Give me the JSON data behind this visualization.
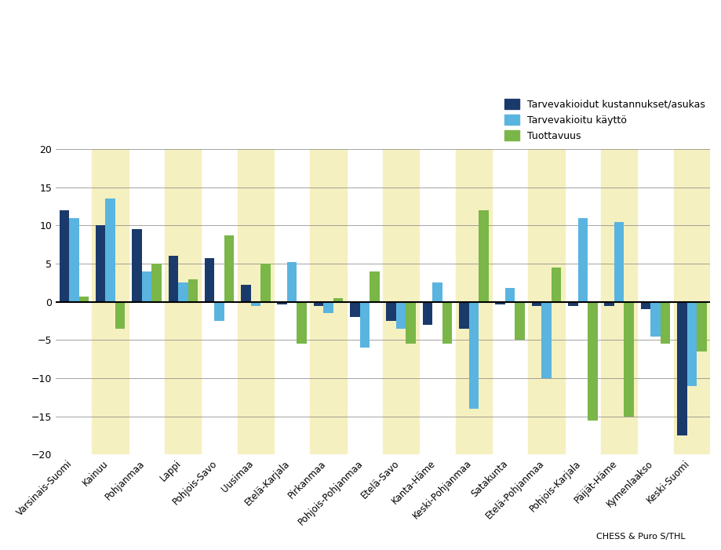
{
  "categories": [
    "Varsinais-Suomi",
    "Kainuu",
    "Pohjanmaa",
    "Lappi",
    "Pohjois-Savo",
    "Uusimaa",
    "Etelä-Karjala",
    "Pirkanmaa",
    "Pohjois-Pohjanmaa",
    "Etelä-Savo",
    "Kanta-Häme",
    "Keski-Pohjanmaa",
    "Satakunta",
    "Etelä-Pohjanmaa",
    "Pohjois-Karjala",
    "Päijät-Häme",
    "Kymenlaakso",
    "Keski-Suomi"
  ],
  "series": {
    "kustannukset": [
      12,
      10,
      9.5,
      6,
      5.7,
      2.2,
      -0.3,
      -0.5,
      -2,
      -2.5,
      -3,
      -3.5,
      -0.3,
      -0.5,
      -0.5,
      -0.5,
      -1,
      -17.5
    ],
    "kaytto": [
      11,
      13.5,
      4,
      2.5,
      -2.5,
      -0.5,
      5.2,
      -1.5,
      -6,
      -3.5,
      2.5,
      -14,
      1.8,
      -10,
      11,
      10.5,
      -4.5,
      -11
    ],
    "tuottavuus": [
      0.7,
      -3.5,
      5,
      3,
      8.7,
      5,
      -5.5,
      0.5,
      4,
      -5.5,
      -5.5,
      12,
      -5,
      4.5,
      -15.5,
      -15,
      -5.5,
      -6.5
    ]
  },
  "colors": {
    "kustannukset": "#1a3a6b",
    "kaytto": "#5ab4e0",
    "tuottavuus": "#7ab648"
  },
  "legend_labels": [
    "Tarvevakioidut kustannukset/asukas",
    "Tarvevakioitu käyttö",
    "Tuottavuus"
  ],
  "ylim": [
    -20,
    20
  ],
  "yticks": [
    -20,
    -15,
    -10,
    -5,
    0,
    5,
    10,
    15,
    20
  ],
  "background_color": "#ffffff",
  "stripe_color": "#fffff0",
  "source_text": "CHESS & Puro S/THL",
  "bar_width": 0.27
}
